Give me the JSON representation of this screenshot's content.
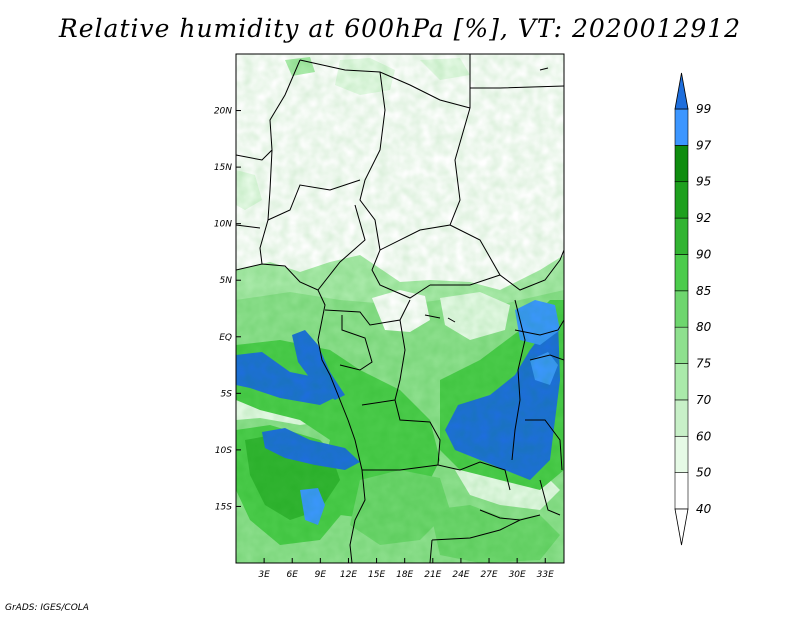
{
  "title": "Relative humidity at 600hPa [%], VT: 2020012912",
  "credit": "GrADS: IGES/COLA",
  "map": {
    "lon_range": [
      0,
      35
    ],
    "lat_range": [
      -20,
      25
    ],
    "x_ticks": [
      {
        "lon": 3,
        "label": "3E"
      },
      {
        "lon": 6,
        "label": "6E"
      },
      {
        "lon": 9,
        "label": "9E"
      },
      {
        "lon": 12,
        "label": "12E"
      },
      {
        "lon": 15,
        "label": "15E"
      },
      {
        "lon": 18,
        "label": "18E"
      },
      {
        "lon": 21,
        "label": "21E"
      },
      {
        "lon": 24,
        "label": "24E"
      },
      {
        "lon": 27,
        "label": "27E"
      },
      {
        "lon": 30,
        "label": "30E"
      },
      {
        "lon": 33,
        "label": "33E"
      }
    ],
    "y_ticks": [
      {
        "lat": 20,
        "label": "20N"
      },
      {
        "lat": 15,
        "label": "15N"
      },
      {
        "lat": 10,
        "label": "10N"
      },
      {
        "lat": 5,
        "label": "5N"
      },
      {
        "lat": 0,
        "label": "EQ"
      },
      {
        "lat": -5,
        "label": "5S"
      },
      {
        "lat": -10,
        "label": "10S"
      },
      {
        "lat": -15,
        "label": "15S"
      }
    ]
  },
  "colorbar": {
    "levels": [
      {
        "label": "40",
        "color": "#ffffff"
      },
      {
        "label": "50",
        "color": "#e6fae6"
      },
      {
        "label": "60",
        "color": "#c8f0c8"
      },
      {
        "label": "70",
        "color": "#aaeaaa"
      },
      {
        "label": "75",
        "color": "#8ee08e"
      },
      {
        "label": "80",
        "color": "#6ed66e"
      },
      {
        "label": "85",
        "color": "#4ccc4c"
      },
      {
        "label": "90",
        "color": "#32b432"
      },
      {
        "label": "92",
        "color": "#1ea01e"
      },
      {
        "label": "95",
        "color": "#0f8c0f"
      },
      {
        "label": "97",
        "color": "#3c96ff"
      },
      {
        "label": "99",
        "color": "#1e6edc"
      }
    ],
    "over_color": "#1e6edc"
  }
}
